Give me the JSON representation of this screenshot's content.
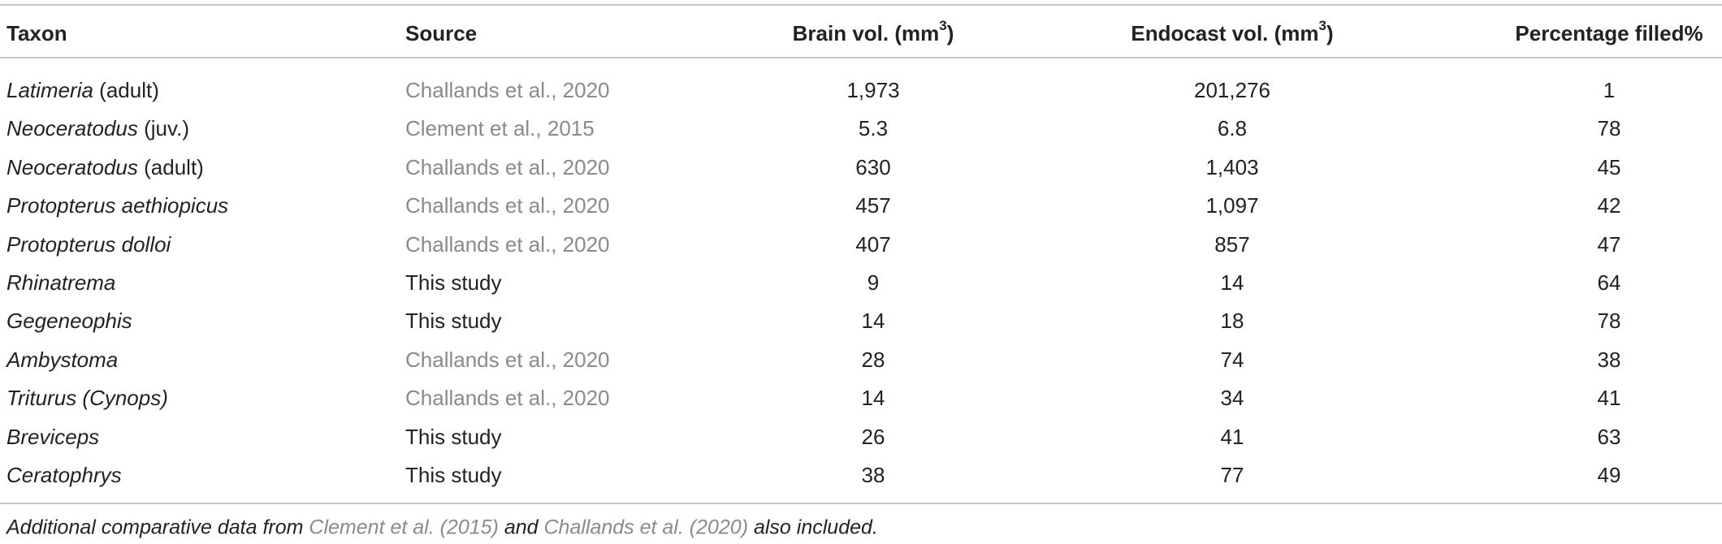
{
  "table": {
    "header": [
      {
        "text": "Taxon"
      },
      {
        "text": "Source"
      },
      {
        "text": "Brain vol. (mm",
        "sup": "3",
        "close": ")"
      },
      {
        "text": "Endocast vol. (mm",
        "sup": "3",
        "close": ")"
      },
      {
        "text": "Percentage filled%"
      }
    ],
    "rows": [
      {
        "genus": "Latimeria",
        "qualifier": "(adult)",
        "source": "Challands et al., 2020",
        "link": true,
        "brain": "1,973",
        "endocast": "201,276",
        "percent": "1"
      },
      {
        "genus": "Neoceratodus",
        "qualifier": "(juv.)",
        "source": "Clement et al., 2015",
        "link": true,
        "brain": "5.3",
        "endocast": "6.8",
        "percent": "78"
      },
      {
        "genus": "Neoceratodus",
        "qualifier": "(adult)",
        "source": "Challands et al., 2020",
        "link": true,
        "brain": "630",
        "endocast": "1,403",
        "percent": "45"
      },
      {
        "genus": "Protopterus aethiopicus",
        "source": "Challands et al., 2020",
        "link": true,
        "brain": "457",
        "endocast": "1,097",
        "percent": "42"
      },
      {
        "genus": "Protopterus dolloi",
        "source": "Challands et al., 2020",
        "link": true,
        "brain": "407",
        "endocast": "857",
        "percent": "47"
      },
      {
        "genus": "Rhinatrema",
        "source": "This study",
        "link": false,
        "brain": "9",
        "endocast": "14",
        "percent": "64"
      },
      {
        "genus": "Gegeneophis",
        "source": "This study",
        "link": false,
        "brain": "14",
        "endocast": "18",
        "percent": "78"
      },
      {
        "genus": "Ambystoma",
        "source": "Challands et al., 2020",
        "link": true,
        "brain": "28",
        "endocast": "74",
        "percent": "38"
      },
      {
        "genus": "Triturus (Cynops)",
        "source": "Challands et al., 2020",
        "link": true,
        "brain": "14",
        "endocast": "34",
        "percent": "41"
      },
      {
        "genus": "Breviceps",
        "source": "This study",
        "link": false,
        "brain": "26",
        "endocast": "41",
        "percent": "63"
      },
      {
        "genus": "Ceratophrys",
        "source": "This study",
        "link": false,
        "brain": "38",
        "endocast": "77",
        "percent": "49"
      }
    ]
  },
  "footnote": [
    {
      "text": "Additional comparative data from "
    },
    {
      "text": "Clement et al. (2015)",
      "link": true
    },
    {
      "text": " and "
    },
    {
      "text": "Challands et al. (2020)",
      "link": true
    },
    {
      "text": " also included."
    }
  ]
}
